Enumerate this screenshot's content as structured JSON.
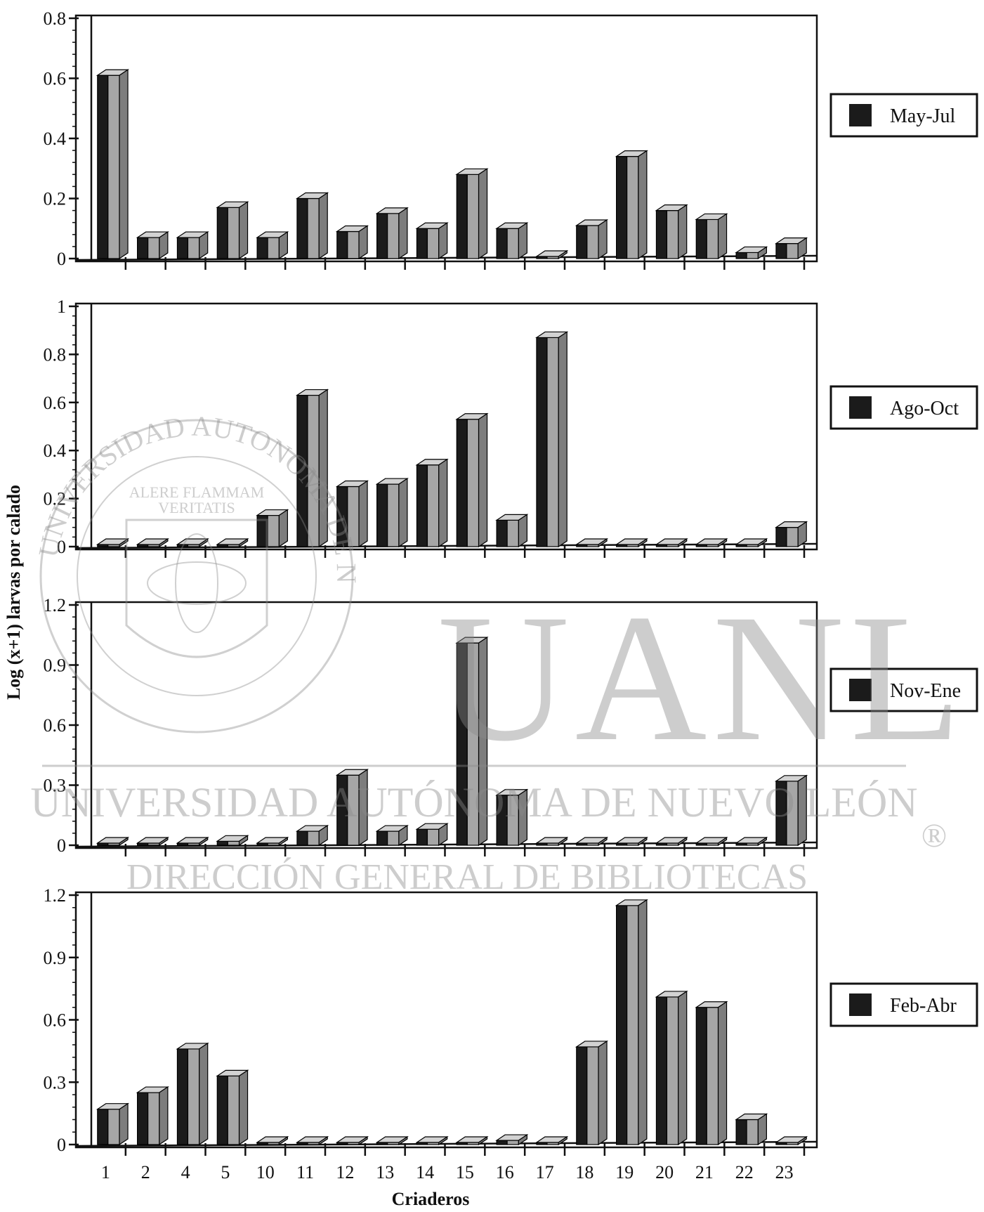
{
  "chart_data": {
    "type": "bar",
    "categories": [
      "1",
      "2",
      "4",
      "5",
      "10",
      "11",
      "12",
      "13",
      "14",
      "15",
      "16",
      "17",
      "18",
      "19",
      "20",
      "21",
      "22",
      "23"
    ],
    "xlabel": "Criaderos",
    "ylabel": "Log (x+1) larvas por calado",
    "panels": [
      {
        "legend": "May-Jul",
        "ylim": [
          0,
          0.8
        ],
        "yticks": [
          "0",
          "0.2",
          "0.4",
          "0.6",
          "0.8"
        ],
        "values": [
          0.61,
          0.07,
          0.07,
          0.17,
          0.07,
          0.2,
          0.09,
          0.15,
          0.1,
          0.28,
          0.1,
          0.0,
          0.11,
          0.34,
          0.16,
          0.13,
          0.02,
          0.05
        ]
      },
      {
        "legend": "Ago-Oct",
        "ylim": [
          0,
          1
        ],
        "yticks": [
          "0",
          "0.2",
          "0.4",
          "0.6",
          "0.8",
          "1"
        ],
        "values": [
          0.0,
          0.0,
          0.0,
          0.0,
          0.13,
          0.63,
          0.25,
          0.26,
          0.34,
          0.53,
          0.11,
          0.87,
          0.0,
          0.0,
          0.0,
          0.0,
          0.0,
          0.08
        ]
      },
      {
        "legend": "Nov-Ene",
        "ylim": [
          0,
          1.2
        ],
        "yticks": [
          "0",
          "0.3",
          "0.6",
          "0.9",
          "1.2"
        ],
        "values": [
          0.0,
          0.0,
          0.0,
          0.02,
          0.0,
          0.07,
          0.35,
          0.07,
          0.08,
          1.01,
          0.25,
          0.0,
          0.0,
          0.0,
          0.0,
          0.0,
          0.0,
          0.32
        ]
      },
      {
        "legend": "Feb-Abr",
        "ylim": [
          0,
          1.2
        ],
        "yticks": [
          "0",
          "0.3",
          "0.6",
          "0.9",
          "1.2"
        ],
        "values": [
          0.17,
          0.25,
          0.46,
          0.33,
          0.0,
          0.0,
          0.0,
          0.0,
          0.0,
          0.0,
          0.02,
          0.0,
          0.47,
          1.15,
          0.71,
          0.66,
          0.12,
          0.0
        ]
      }
    ],
    "colors": {
      "bar_front": "#1b1b1b",
      "bar_side": "#a6a6a6",
      "bar_top": "#d2d2d2",
      "axis": "#111111"
    }
  },
  "watermark": {
    "big": "UANL",
    "line1": "UNIVERSIDAD AUTÓNOMA DE NUEVO LEÓN",
    "line2": "DIRECCIÓN GENERAL DE BIBLIOTECAS",
    "seal_ring": "UNIVERSIDAD AUTONOMA DE NUEVO LEON",
    "seal_motto_1": "ALERE FLAMMAM",
    "seal_motto_2": "VERITATIS",
    "registered": "®"
  }
}
